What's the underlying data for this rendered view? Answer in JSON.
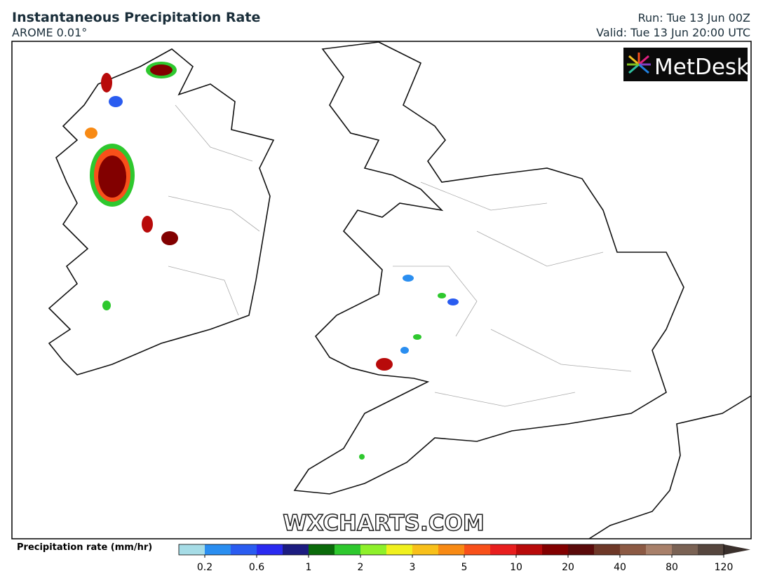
{
  "header": {
    "title": "Instantaneous Precipitation Rate",
    "subtitle": "AROME 0.01°",
    "run": "Run: Tue 13 Jun 00Z",
    "valid": "Valid: Tue 13 Jun 20:00 UTC"
  },
  "map": {
    "logo": "MetDesk",
    "watermark": "WXCHARTS.COM"
  },
  "legend": {
    "label": "Precipitation rate (mm/hr)",
    "ticks": [
      0.2,
      0.6,
      1,
      2,
      3,
      5,
      10,
      20,
      40,
      80,
      120
    ],
    "colors": [
      "#a6dce6",
      "#2a8ef0",
      "#2a5cf0",
      "#2a2af0",
      "#1c1c80",
      "#0a6a0a",
      "#2ec82e",
      "#8ef02a",
      "#f0f01e",
      "#f8c01a",
      "#f88a14",
      "#f8501a",
      "#e81e1e",
      "#b80a0a",
      "#820000",
      "#5a0a0a",
      "#6e3828",
      "#8c5a44",
      "#a8806a",
      "#7a6254",
      "#56463e",
      "#3a302c"
    ]
  }
}
